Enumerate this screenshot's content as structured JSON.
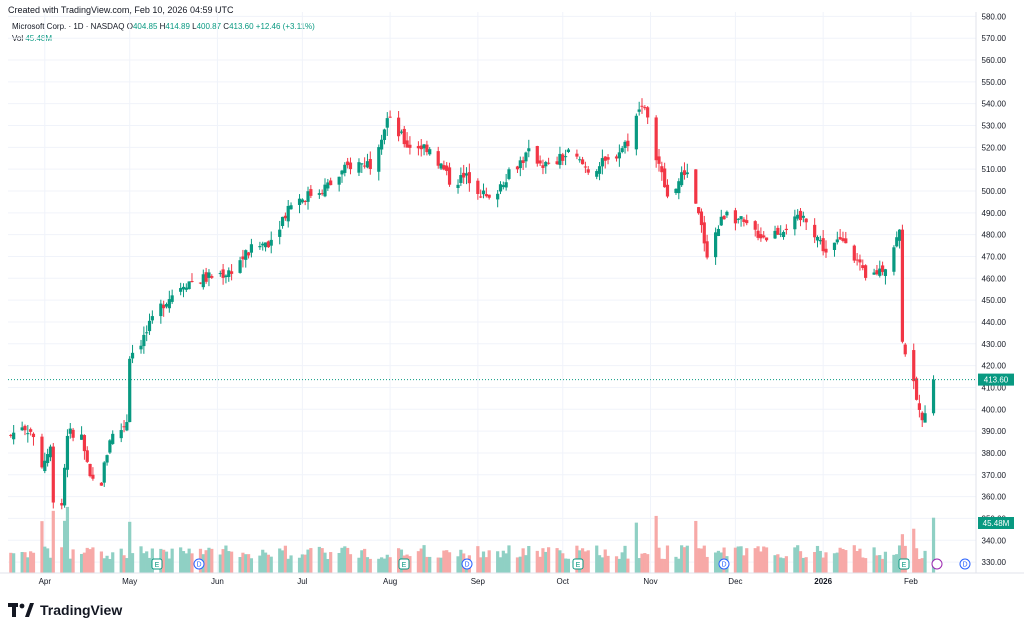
{
  "credit": "Created with TradingView.com, Feb 10, 2026 04:59 UTC",
  "legend": {
    "symbol": "Microsoft Corp. · 1D · NASDAQ",
    "o_label": "O",
    "o": "404.85",
    "h_label": "H",
    "h": "414.89",
    "l_label": "L",
    "l": "400.87",
    "c_label": "C",
    "c": "413.60",
    "change": "+12.46 (+3.11%)",
    "vol_label": "Vol",
    "vol": "45.48M"
  },
  "brand": "TradingView",
  "colors": {
    "up": "#089981",
    "down": "#f23645",
    "vol_up": "#8fd0c4",
    "vol_down": "#f7a9a7",
    "grid": "#f0f3fa",
    "axis_text": "#131722"
  },
  "chart_data": {
    "type": "candlestick",
    "y_axis": {
      "ticks": [
        330,
        340,
        350,
        360,
        370,
        380,
        390,
        400,
        410,
        420,
        430,
        440,
        450,
        460,
        470,
        480,
        490,
        500,
        510,
        520,
        530,
        540,
        550,
        560,
        570,
        580
      ],
      "tick_labels": [
        "330.00",
        "340.00",
        "350.00",
        "360.00",
        "370.00",
        "380.00",
        "390.00",
        "400.00",
        "410.00",
        "420.00",
        "430.00",
        "440.00",
        "450.00",
        "460.00",
        "470.00",
        "480.00",
        "490.00",
        "500.00",
        "510.00",
        "520.00",
        "530.00",
        "540.00",
        "550.00",
        "560.00",
        "570.00",
        "580.00"
      ],
      "range": [
        325,
        582
      ]
    },
    "x_axis": {
      "labels": [
        "Apr",
        "May",
        "Jun",
        "Jul",
        "Aug",
        "Sep",
        "Oct",
        "Nov",
        "Dec",
        "2026",
        "Feb"
      ],
      "bold": [
        "2026"
      ]
    },
    "last_price": "413.60",
    "last_volume": "45.48M",
    "series": [
      {
        "date": "2025-03-20",
        "c": 388
      },
      {
        "date": "2025-03-24",
        "c": 393
      },
      {
        "date": "2025-03-27",
        "c": 390
      },
      {
        "date": "2025-03-31",
        "c": 375
      },
      {
        "date": "2025-04-03",
        "c": 382
      },
      {
        "date": "2025-04-04",
        "c": 360
      },
      {
        "date": "2025-04-07",
        "c": 357
      },
      {
        "date": "2025-04-09",
        "c": 390
      },
      {
        "date": "2025-04-11",
        "c": 388
      },
      {
        "date": "2025-04-14",
        "c": 387
      },
      {
        "date": "2025-04-17",
        "c": 367
      },
      {
        "date": "2025-04-21",
        "c": 367
      },
      {
        "date": "2025-04-24",
        "c": 387
      },
      {
        "date": "2025-04-28",
        "c": 391
      },
      {
        "date": "2025-04-30",
        "c": 395
      },
      {
        "date": "2025-05-01",
        "c": 425
      },
      {
        "date": "2025-05-06",
        "c": 433
      },
      {
        "date": "2025-05-13",
        "c": 449
      },
      {
        "date": "2025-05-20",
        "c": 458
      },
      {
        "date": "2025-05-28",
        "c": 460
      },
      {
        "date": "2025-06-05",
        "c": 463
      },
      {
        "date": "2025-06-12",
        "c": 472
      },
      {
        "date": "2025-06-20",
        "c": 478
      },
      {
        "date": "2025-06-27",
        "c": 495
      },
      {
        "date": "2025-07-03",
        "c": 498
      },
      {
        "date": "2025-07-11",
        "c": 503
      },
      {
        "date": "2025-07-18",
        "c": 512
      },
      {
        "date": "2025-07-25",
        "c": 513
      },
      {
        "date": "2025-07-31",
        "c": 533
      },
      {
        "date": "2025-08-07",
        "c": 521
      },
      {
        "date": "2025-08-15",
        "c": 520
      },
      {
        "date": "2025-08-22",
        "c": 505
      },
      {
        "date": "2025-08-29",
        "c": 506
      },
      {
        "date": "2025-09-05",
        "c": 495
      },
      {
        "date": "2025-09-12",
        "c": 509
      },
      {
        "date": "2025-09-19",
        "c": 517
      },
      {
        "date": "2025-09-26",
        "c": 511
      },
      {
        "date": "2025-10-03",
        "c": 517
      },
      {
        "date": "2025-10-10",
        "c": 510
      },
      {
        "date": "2025-10-17",
        "c": 513
      },
      {
        "date": "2025-10-24",
        "c": 523
      },
      {
        "date": "2025-10-29",
        "c": 541
      },
      {
        "date": "2025-11-03",
        "c": 517
      },
      {
        "date": "2025-11-07",
        "c": 497
      },
      {
        "date": "2025-11-14",
        "c": 510
      },
      {
        "date": "2025-11-21",
        "c": 472
      },
      {
        "date": "2025-11-28",
        "c": 492
      },
      {
        "date": "2025-12-05",
        "c": 483
      },
      {
        "date": "2025-12-12",
        "c": 479
      },
      {
        "date": "2025-12-19",
        "c": 484
      },
      {
        "date": "2025-12-26",
        "c": 488
      },
      {
        "date": "2026-01-02",
        "c": 472
      },
      {
        "date": "2026-01-09",
        "c": 479
      },
      {
        "date": "2026-01-16",
        "c": 459
      },
      {
        "date": "2026-01-23",
        "c": 466
      },
      {
        "date": "2026-01-28",
        "c": 481
      },
      {
        "date": "2026-01-29",
        "c": 433
      },
      {
        "date": "2026-02-05",
        "c": 393
      },
      {
        "date": "2026-02-06",
        "c": 401
      },
      {
        "date": "2026-02-09",
        "c": 413.6
      }
    ]
  },
  "event_markers": [
    {
      "type": "E",
      "date_label": "May"
    },
    {
      "type": "D",
      "date_label": "May"
    },
    {
      "type": "E",
      "date_label": "Aug"
    },
    {
      "type": "D",
      "date_label": "Sep"
    },
    {
      "type": "E",
      "date_label": "Oct"
    },
    {
      "type": "D",
      "date_label": "Nov"
    },
    {
      "type": "E",
      "date_label": "Jan"
    },
    {
      "type": "D",
      "date_label": "Feb"
    }
  ]
}
